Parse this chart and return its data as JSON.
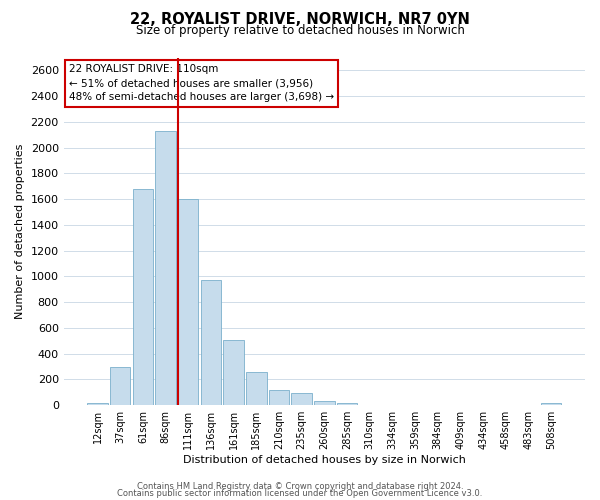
{
  "title": "22, ROYALIST DRIVE, NORWICH, NR7 0YN",
  "subtitle": "Size of property relative to detached houses in Norwich",
  "xlabel": "Distribution of detached houses by size in Norwich",
  "ylabel": "Number of detached properties",
  "bar_labels": [
    "12sqm",
    "37sqm",
    "61sqm",
    "86sqm",
    "111sqm",
    "136sqm",
    "161sqm",
    "185sqm",
    "210sqm",
    "235sqm",
    "260sqm",
    "285sqm",
    "310sqm",
    "334sqm",
    "359sqm",
    "384sqm",
    "409sqm",
    "434sqm",
    "458sqm",
    "483sqm",
    "508sqm"
  ],
  "bar_values": [
    20,
    295,
    1680,
    2130,
    1600,
    970,
    505,
    255,
    120,
    95,
    30,
    15,
    0,
    0,
    0,
    5,
    0,
    0,
    0,
    0,
    20
  ],
  "bar_color": "#c6dcec",
  "bar_edge_color": "#7ab0cc",
  "vline_color": "#cc0000",
  "annotation_text": "22 ROYALIST DRIVE: 110sqm\n← 51% of detached houses are smaller (3,956)\n48% of semi-detached houses are larger (3,698) →",
  "annotation_box_color": "#ffffff",
  "annotation_box_edge_color": "#cc0000",
  "ylim": [
    0,
    2700
  ],
  "yticks": [
    0,
    200,
    400,
    600,
    800,
    1000,
    1200,
    1400,
    1600,
    1800,
    2000,
    2200,
    2400,
    2600
  ],
  "background_color": "#ffffff",
  "grid_color": "#d0dce8",
  "footer1": "Contains HM Land Registry data © Crown copyright and database right 2024.",
  "footer2": "Contains public sector information licensed under the Open Government Licence v3.0."
}
